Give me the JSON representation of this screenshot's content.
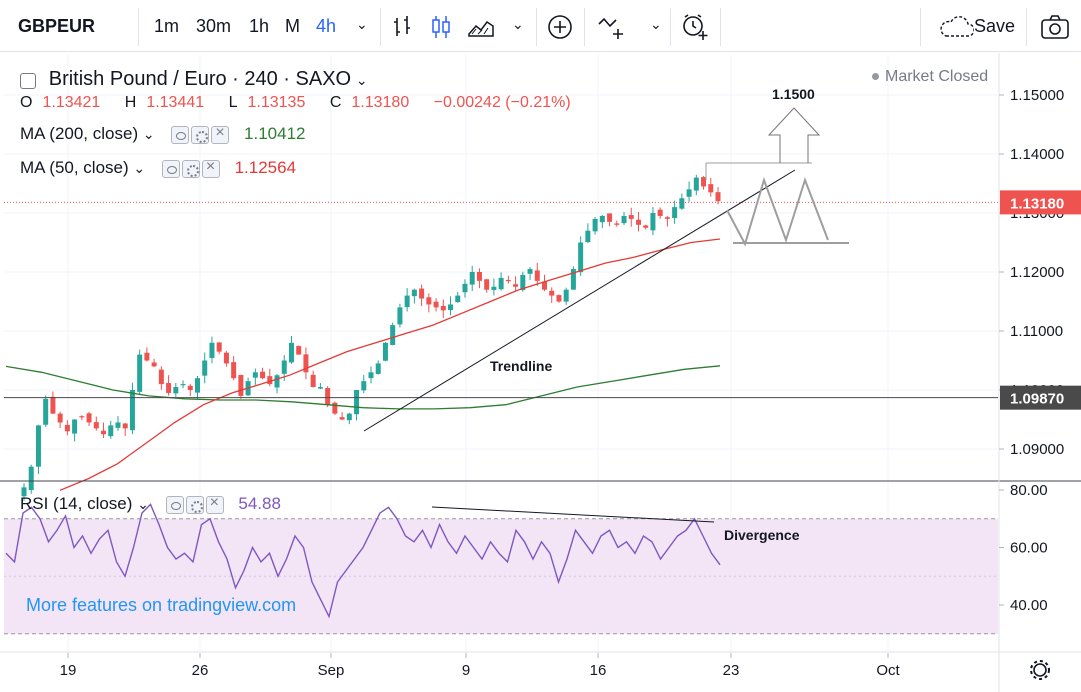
{
  "toolbar": {
    "symbol": "GBPEUR",
    "timeframes": [
      "1m",
      "30m",
      "1h",
      "M",
      "4h"
    ],
    "active_timeframe": "4h",
    "save_label": "Save"
  },
  "legend": {
    "title": "British Pound / Euro · 240 · SAXO",
    "ohlc": {
      "o_key": "O",
      "o_val": "1.13421",
      "h_key": "H",
      "h_val": "1.13441",
      "l_key": "L",
      "l_val": "1.13135",
      "c_key": "C",
      "c_val": "1.13180",
      "change": "−0.00242 (−0.21%)"
    },
    "ma200_label": "MA (200, close)",
    "ma200_value": "1.10412",
    "ma50_label": "MA (50, close)",
    "ma50_value": "1.12564",
    "rsi_label": "RSI (14, close)",
    "rsi_value": "54.88",
    "market_status": "Market Closed"
  },
  "watermark": "More features on tradingview.com",
  "colors": {
    "up": "#26a69a",
    "down": "#ef5350",
    "ma50": "#e53935",
    "ma200": "#2e7d32",
    "rsi": "#7e57c2",
    "rsi_band": "#f3e5f5",
    "accent": "#2962ff"
  },
  "chart_data": [
    {
      "type": "candlestick",
      "price_axis_ticks": [
        "1.15000",
        "1.14000",
        "1.13000",
        "1.12000",
        "1.11000",
        "1.10000",
        "1.09000"
      ],
      "ylim": [
        1.0825,
        1.158
      ],
      "x_ticks": [
        "19",
        "26",
        "Sep",
        "9",
        "16",
        "23",
        "Oct"
      ],
      "last_price": "1.13180",
      "marked_level": "1.09870",
      "annotations": {
        "target": "1.1500",
        "trendline": "Trendline",
        "divergence": "Divergence"
      },
      "price_path": [
        1.0835,
        1.087,
        1.094,
        1.0985,
        1.096,
        1.0945,
        1.093,
        1.095,
        1.0955,
        1.0945,
        1.0935,
        1.0925,
        1.094,
        1.0945,
        1.0935,
        1.1,
        1.106,
        1.105,
        1.104,
        1.101,
        1.0995,
        1.1005,
        1.101,
        1.1,
        1.102,
        1.105,
        1.108,
        1.1065,
        1.1045,
        1.102,
        1.099,
        1.1015,
        1.103,
        1.102,
        1.101,
        1.1025,
        1.105,
        1.108,
        1.106,
        1.103,
        1.1005,
        1.1005,
        1.0975,
        1.096,
        1.095,
        1.096,
        1.1,
        1.1015,
        1.103,
        1.1045,
        1.108,
        1.111,
        1.114,
        1.116,
        1.117,
        1.1155,
        1.1145,
        1.114,
        1.1135,
        1.1145,
        1.116,
        1.118,
        1.12,
        1.1185,
        1.117,
        1.1175,
        1.119,
        1.1185,
        1.1175,
        1.1195,
        1.1205,
        1.1185,
        1.117,
        1.116,
        1.115,
        1.117,
        1.1205,
        1.125,
        1.127,
        1.129,
        1.1295,
        1.1285,
        1.128,
        1.1295,
        1.129,
        1.128,
        1.1275,
        1.13,
        1.1295,
        1.129,
        1.131,
        1.1325,
        1.134,
        1.136,
        1.1345,
        1.1335,
        1.132
      ],
      "ma50_path": [
        1.083,
        1.085,
        1.0875,
        1.091,
        1.0945,
        1.0975,
        1.0995,
        1.101,
        1.1025,
        1.1045,
        1.1065,
        1.108,
        1.1095,
        1.111,
        1.113,
        1.115,
        1.117,
        1.1185,
        1.12,
        1.1215,
        1.1225,
        1.1238,
        1.125,
        1.1256
      ],
      "ma200_path": [
        1.104,
        1.103,
        1.1015,
        1.1,
        1.099,
        1.0985,
        1.0983,
        1.0983,
        1.098,
        1.0975,
        1.097,
        1.0968,
        1.0968,
        1.097,
        1.0975,
        1.099,
        1.1005,
        1.1015,
        1.1025,
        1.1035,
        1.1041
      ]
    },
    {
      "type": "line",
      "name": "RSI (14, close)",
      "y_ticks": [
        "80.00",
        "60.00",
        "40.00"
      ],
      "ylim": [
        25,
        85
      ],
      "band": [
        30,
        70
      ],
      "values": [
        58,
        55,
        72,
        74,
        70,
        62,
        66,
        71,
        60,
        64,
        58,
        63,
        66,
        55,
        50,
        60,
        72,
        75,
        68,
        60,
        56,
        58,
        55,
        68,
        70,
        62,
        56,
        46,
        52,
        60,
        55,
        58,
        50,
        56,
        64,
        60,
        48,
        42,
        36,
        48,
        52,
        56,
        60,
        66,
        72,
        74,
        70,
        64,
        62,
        66,
        60,
        68,
        62,
        58,
        64,
        60,
        56,
        62,
        58,
        55,
        66,
        62,
        56,
        62,
        58,
        48,
        56,
        66,
        62,
        58,
        64,
        66,
        60,
        62,
        58,
        64,
        62,
        56,
        60,
        64,
        66,
        70,
        64,
        58,
        54
      ]
    }
  ]
}
